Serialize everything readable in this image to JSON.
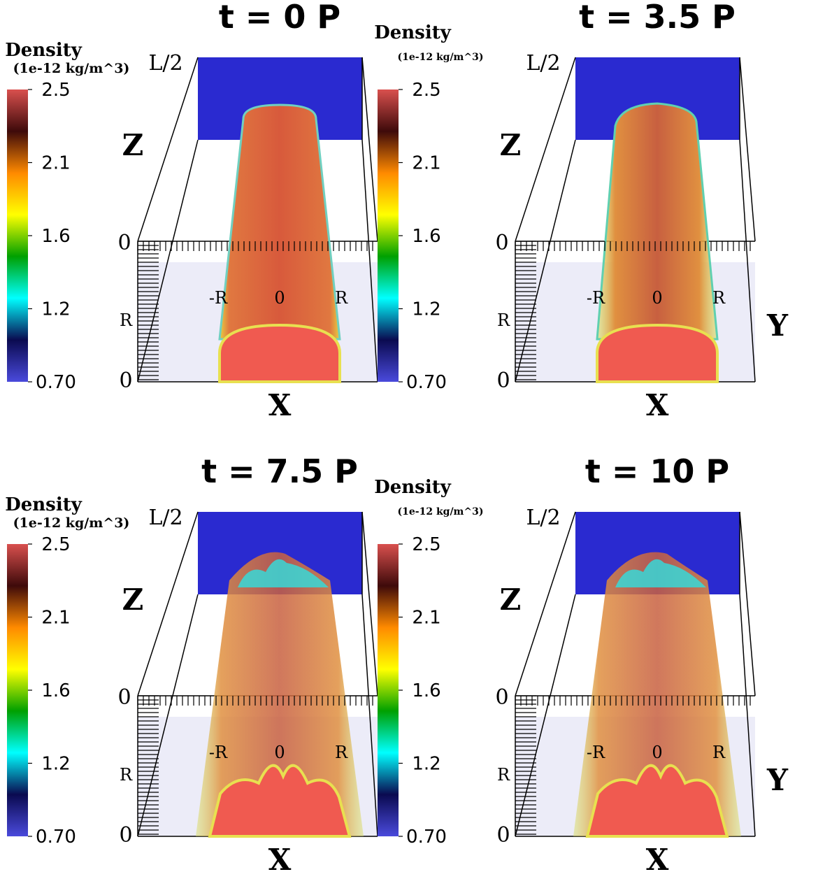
{
  "panels": [
    {
      "title": "t = 0 P",
      "stage": 0
    },
    {
      "title": "t = 3.5 P",
      "stage": 1
    },
    {
      "title": "t = 7.5 P",
      "stage": 2
    },
    {
      "title": "t = 10 P",
      "stage": 3
    }
  ],
  "colorbar": {
    "label": "Density",
    "units": "(1e-12 kg/m^3)",
    "ticks": [
      "2.5",
      "2.1",
      "1.6",
      "1.2",
      "0.70"
    ],
    "colors": [
      "#d9504e",
      "#3e0a0a",
      "#ff8a00",
      "#ffff00",
      "#00a000",
      "#00ffff",
      "#0a0a50",
      "#4a4adc"
    ]
  },
  "axes": {
    "x_letter": "X",
    "y_letter": "Y",
    "z_letter": "Z",
    "z_top": "L/2",
    "z_zero": "0",
    "x_ticks": [
      "-R",
      "0",
      "R"
    ],
    "y_ticks": [
      "R",
      "0"
    ]
  },
  "colors": {
    "background_blue": "#2a2ad0",
    "floor": "#ececf8",
    "tube": "#d96040"
  }
}
